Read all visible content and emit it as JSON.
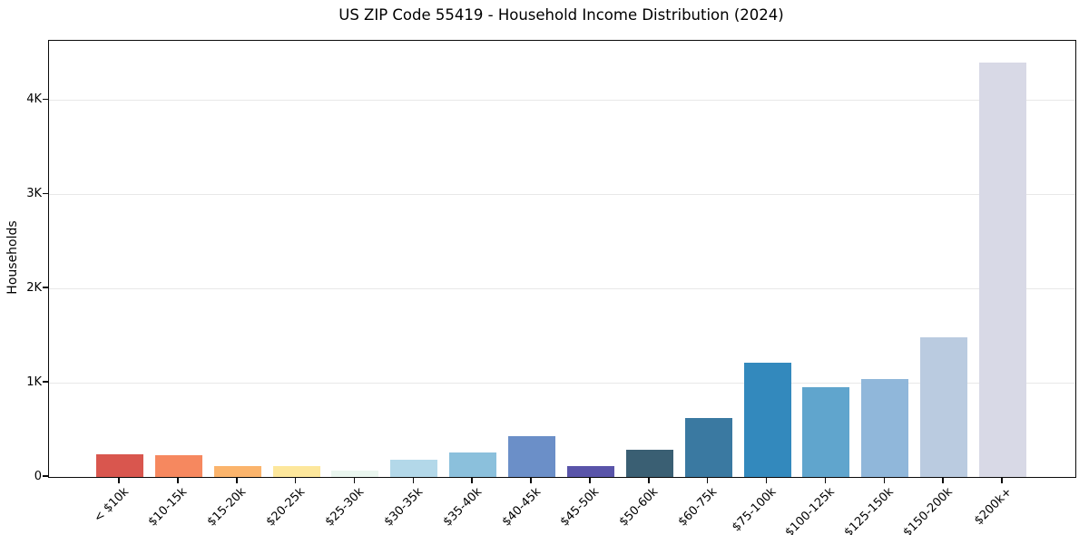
{
  "chart_data": {
    "type": "bar",
    "title": "US ZIP Code 55419 - Household Income Distribution (2024)",
    "xlabel": "",
    "ylabel": "Households",
    "categories": [
      "< $10k",
      "$10-15k",
      "$15-20k",
      "$20-25k",
      "$25-30k",
      "$30-35k",
      "$35-40k",
      "$40-45k",
      "$45-50k",
      "$50-60k",
      "$60-75k",
      "$75-100k",
      "$100-125k",
      "$125-150k",
      "$150-200k",
      "$200k+"
    ],
    "values": [
      245,
      235,
      120,
      115,
      65,
      180,
      260,
      430,
      120,
      285,
      630,
      1210,
      950,
      1040,
      1480,
      4400
    ],
    "bar_colors": [
      "#d9564e",
      "#f6885f",
      "#fbb46c",
      "#fde79c",
      "#eaf6ef",
      "#b3d8e9",
      "#8bc0dc",
      "#6b8fc8",
      "#5954a9",
      "#3a5f73",
      "#3a79a1",
      "#3389bd",
      "#60a5cd",
      "#90b7da",
      "#bacbe0",
      "#d8d9e6"
    ],
    "ylim": [
      0,
      4630
    ],
    "yticks": {
      "values": [
        0,
        1000,
        2000,
        3000,
        4000
      ],
      "labels": [
        "0",
        "1K",
        "2K",
        "3K",
        "4K"
      ]
    },
    "grid": "horizontal",
    "gridline_color": "#e8e8e8",
    "axis_color": "#0a0a0a",
    "legend": "none"
  }
}
